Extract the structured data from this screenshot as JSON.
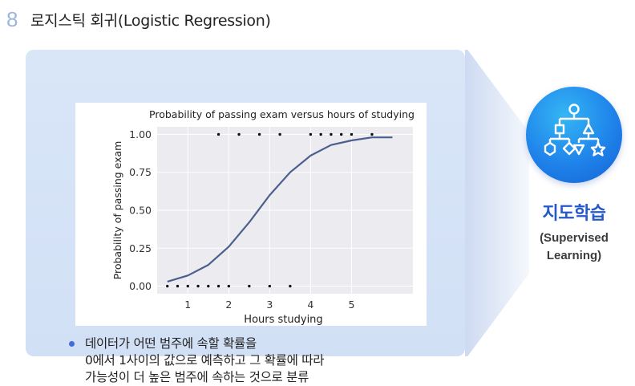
{
  "header": {
    "slide_number": "8",
    "title": "로지스틱 회귀(Logistic Regression)"
  },
  "side": {
    "title": "지도학습",
    "subtitle_line1": "(Supervised",
    "subtitle_line2": "Learning)",
    "icon": "decision-tree-icon"
  },
  "bullets": [
    {
      "line1": "데이터가 어떤 범주에 속할 확률을",
      "line2": "0에서 1사이의 값으로 예측하고 그 확률에 따라",
      "line3": "가능성이 더 높은 범주에 속하는 것으로 분류"
    }
  ],
  "colors": {
    "accent": "#2558c9",
    "curve": "#4b5f8f",
    "panel": "#d6e3f7",
    "plot_bg": "#ebebf0"
  },
  "chart_data": {
    "type": "scatter",
    "title": "Probability of passing exam versus hours of studying",
    "xlabel": "Hours studying",
    "ylabel": "Probability of passing exam",
    "xlim": [
      0.25,
      6.5
    ],
    "ylim": [
      -0.05,
      1.05
    ],
    "xticks": [
      "1",
      "2",
      "3",
      "4",
      "5"
    ],
    "yticks": [
      "0.00",
      "0.25",
      "0.50",
      "0.75",
      "1.00"
    ],
    "grid": true,
    "series": [
      {
        "type": "scatter",
        "x": [
          0.5,
          0.75,
          1.0,
          1.25,
          1.5,
          1.75,
          2.0,
          2.5,
          3.0,
          3.5,
          1.75,
          2.25,
          2.75,
          3.25,
          4.0,
          4.25,
          4.5,
          4.75,
          5.0,
          5.5
        ],
        "y": [
          0,
          0,
          0,
          0,
          0,
          0,
          0,
          0,
          0,
          0,
          1,
          1,
          1,
          1,
          1,
          1,
          1,
          1,
          1,
          1
        ]
      },
      {
        "type": "line",
        "x": [
          0.5,
          1.0,
          1.5,
          2.0,
          2.5,
          3.0,
          3.5,
          4.0,
          4.5,
          5.0,
          5.5,
          6.0
        ],
        "y": [
          0.03,
          0.07,
          0.14,
          0.26,
          0.42,
          0.6,
          0.75,
          0.86,
          0.93,
          0.96,
          0.98,
          0.98
        ]
      }
    ]
  }
}
